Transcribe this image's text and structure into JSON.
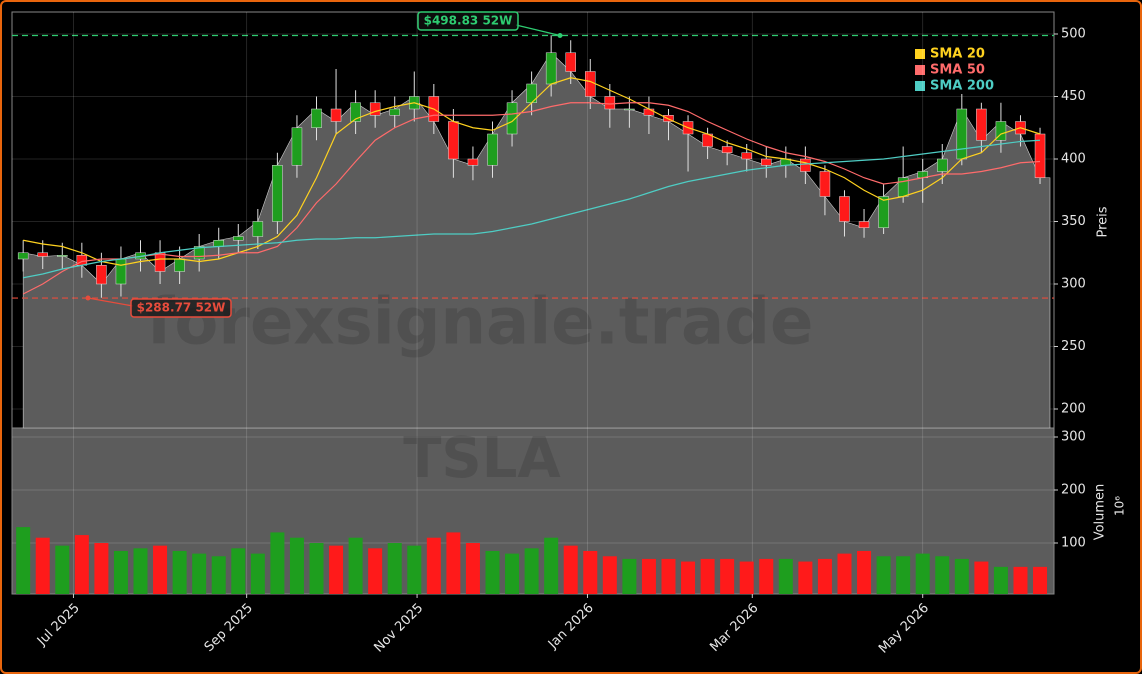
{
  "chart_data": [
    {
      "type": "candlestick",
      "x": [
        "2025-06-13",
        "2025-06-20",
        "2025-06-27",
        "2025-07-04",
        "2025-07-11",
        "2025-07-18",
        "2025-07-25",
        "2025-08-01",
        "2025-08-08",
        "2025-08-15",
        "2025-08-22",
        "2025-08-29",
        "2025-09-05",
        "2025-09-12",
        "2025-09-19",
        "2025-09-26",
        "2025-10-03",
        "2025-10-10",
        "2025-10-17",
        "2025-10-24",
        "2025-10-31",
        "2025-11-07",
        "2025-11-14",
        "2025-11-21",
        "2025-11-28",
        "2025-12-05",
        "2025-12-12",
        "2025-12-19",
        "2025-12-26",
        "2026-01-02",
        "2026-01-09",
        "2026-01-16",
        "2026-01-23",
        "2026-01-30",
        "2026-02-06",
        "2026-02-13",
        "2026-02-20",
        "2026-02-27",
        "2026-03-06",
        "2026-03-13",
        "2026-03-20",
        "2026-03-27",
        "2026-04-03",
        "2026-04-10",
        "2026-04-17",
        "2026-04-24",
        "2026-05-01",
        "2026-05-08",
        "2026-05-15",
        "2026-05-22",
        "2026-05-29",
        "2026-06-05",
        "2026-06-12"
      ],
      "open": [
        320,
        325,
        322,
        323,
        315,
        300,
        320,
        325,
        310,
        320,
        330,
        335,
        338,
        350,
        395,
        425,
        440,
        430,
        445,
        435,
        440,
        450,
        430,
        400,
        395,
        420,
        445,
        460,
        485,
        470,
        450,
        440,
        440,
        435,
        430,
        420,
        410,
        405,
        400,
        395,
        400,
        390,
        370,
        350,
        345,
        370,
        385,
        390,
        400,
        440,
        415,
        430,
        420
      ],
      "high": [
        335,
        335,
        333,
        333,
        325,
        330,
        335,
        335,
        330,
        340,
        345,
        348,
        360,
        405,
        435,
        450,
        472,
        455,
        455,
        450,
        470,
        460,
        440,
        410,
        430,
        455,
        470,
        499,
        495,
        480,
        460,
        450,
        450,
        440,
        435,
        425,
        415,
        412,
        410,
        410,
        410,
        395,
        375,
        360,
        380,
        410,
        400,
        412,
        452,
        445,
        445,
        435,
        425
      ],
      "low": [
        310,
        312,
        312,
        305,
        289,
        290,
        310,
        300,
        300,
        310,
        320,
        325,
        328,
        340,
        385,
        415,
        420,
        420,
        425,
        425,
        430,
        420,
        385,
        383,
        385,
        410,
        435,
        450,
        460,
        440,
        425,
        425,
        420,
        415,
        390,
        400,
        395,
        390,
        385,
        385,
        380,
        355,
        338,
        337,
        340,
        365,
        365,
        380,
        395,
        405,
        405,
        410,
        380
      ],
      "close": [
        325,
        322,
        323,
        315,
        300,
        320,
        325,
        310,
        320,
        330,
        335,
        338,
        350,
        395,
        425,
        440,
        430,
        445,
        435,
        440,
        450,
        430,
        400,
        395,
        420,
        445,
        460,
        485,
        470,
        450,
        440,
        440,
        435,
        430,
        420,
        410,
        405,
        400,
        395,
        400,
        390,
        370,
        350,
        345,
        370,
        385,
        390,
        400,
        440,
        415,
        430,
        420,
        385
      ],
      "up_color": "#1e9e1e",
      "down_color": "#ff1a1a",
      "area_color": "#5c5c5c",
      "series": [
        {
          "name": "SMA 20",
          "color": "#ffd21f",
          "values": [
            335,
            332,
            330,
            325,
            318,
            315,
            318,
            320,
            320,
            318,
            320,
            325,
            330,
            338,
            355,
            385,
            420,
            432,
            438,
            442,
            445,
            440,
            430,
            425,
            423,
            430,
            445,
            460,
            465,
            462,
            455,
            448,
            440,
            432,
            425,
            420,
            413,
            408,
            402,
            400,
            397,
            392,
            385,
            375,
            367,
            370,
            375,
            385,
            400,
            405,
            420,
            425,
            420
          ]
        },
        {
          "name": "SMA 50",
          "color": "#ff6b6b",
          "values": [
            292,
            300,
            310,
            318,
            320,
            320,
            322,
            324,
            322,
            322,
            323,
            325,
            325,
            330,
            345,
            365,
            380,
            398,
            415,
            425,
            432,
            435,
            435,
            435,
            435,
            436,
            438,
            442,
            445,
            445,
            444,
            445,
            445,
            443,
            438,
            430,
            423,
            416,
            410,
            405,
            402,
            398,
            392,
            385,
            380,
            382,
            385,
            388,
            388,
            390,
            393,
            397,
            398
          ]
        },
        {
          "name": "SMA 200",
          "color": "#4ecdc4",
          "values": [
            305,
            308,
            312,
            315,
            318,
            320,
            322,
            325,
            327,
            329,
            330,
            331,
            332,
            333,
            335,
            336,
            336,
            337,
            337,
            338,
            339,
            340,
            340,
            340,
            342,
            345,
            348,
            352,
            356,
            360,
            364,
            368,
            373,
            378,
            382,
            385,
            388,
            391,
            393,
            395,
            396,
            397,
            398,
            399,
            400,
            402,
            404,
            406,
            408,
            410,
            412,
            414,
            415
          ]
        }
      ],
      "legend": "upper right",
      "annotations": [
        {
          "label": "$498.83 52W",
          "value": 498.83,
          "color": "#2ecc71"
        },
        {
          "label": "$288.77 52W",
          "value": 288.77,
          "color": "#e74c3c"
        }
      ],
      "watermark": "forexsignale.trade",
      "ylabel": "Preis",
      "xlim": [
        "2025-06-09",
        "2026-06-17"
      ],
      "ylim": [
        184.8,
        517.6
      ],
      "yticks": [
        200,
        250,
        300,
        350,
        400,
        450,
        500
      ],
      "grid": true
    },
    {
      "type": "bar",
      "x": [
        "2025-06-13",
        "2025-06-20",
        "2025-06-27",
        "2025-07-04",
        "2025-07-11",
        "2025-07-18",
        "2025-07-25",
        "2025-08-01",
        "2025-08-08",
        "2025-08-15",
        "2025-08-22",
        "2025-08-29",
        "2025-09-05",
        "2025-09-12",
        "2025-09-19",
        "2025-09-26",
        "2025-10-03",
        "2025-10-10",
        "2025-10-17",
        "2025-10-24",
        "2025-10-31",
        "2025-11-07",
        "2025-11-14",
        "2025-11-21",
        "2025-11-28",
        "2025-12-05",
        "2025-12-12",
        "2025-12-19",
        "2025-12-26",
        "2026-01-02",
        "2026-01-09",
        "2026-01-16",
        "2026-01-23",
        "2026-01-30",
        "2026-02-06",
        "2026-02-13",
        "2026-02-20",
        "2026-02-27",
        "2026-03-06",
        "2026-03-13",
        "2026-03-20",
        "2026-03-27",
        "2026-04-03",
        "2026-04-10",
        "2026-04-17",
        "2026-04-24",
        "2026-05-01",
        "2026-05-08",
        "2026-05-15",
        "2026-05-22",
        "2026-05-29",
        "2026-06-05",
        "2026-06-12"
      ],
      "values": [
        130,
        110,
        95,
        115,
        100,
        85,
        90,
        95,
        85,
        80,
        75,
        90,
        80,
        120,
        110,
        100,
        95,
        110,
        90,
        100,
        95,
        110,
        120,
        100,
        85,
        80,
        90,
        110,
        95,
        85,
        75,
        70,
        70,
        70,
        65,
        70,
        70,
        65,
        70,
        70,
        65,
        70,
        80,
        85,
        75,
        75,
        80,
        75,
        70,
        65,
        55,
        55,
        55
      ],
      "watermark": "TSLA",
      "ylabel": "Volumen",
      "multiplier": "10⁶",
      "xlim": [
        "2025-06-09",
        "2026-06-17"
      ],
      "xticks": [
        {
          "value": "2025-07-01",
          "label": "Jul 2025"
        },
        {
          "value": "2025-09-01",
          "label": "Sep 2025"
        },
        {
          "value": "2025-11-01",
          "label": "Nov 2025"
        },
        {
          "value": "2026-01-01",
          "label": "Jan 2026"
        },
        {
          "value": "2026-03-01",
          "label": "Mar 2026"
        },
        {
          "value": "2026-05-01",
          "label": "May 2026"
        }
      ],
      "ylim": [
        3.8,
        317
      ],
      "yticks": [
        100,
        200,
        300
      ],
      "grid": true
    }
  ]
}
